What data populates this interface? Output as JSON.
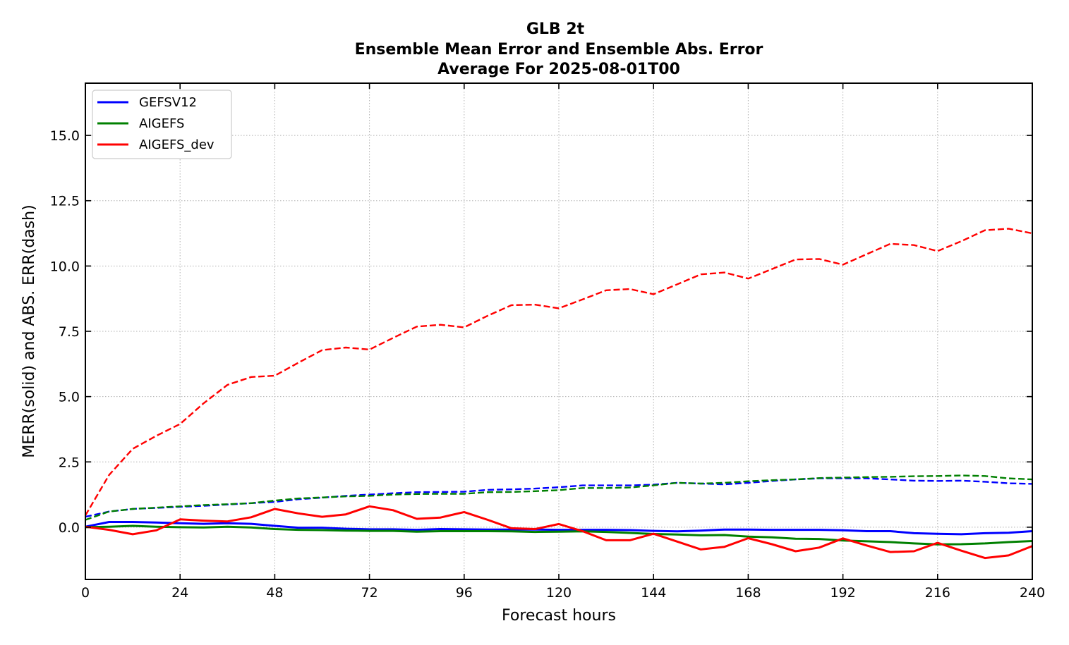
{
  "chart_data": {
    "type": "line",
    "title": [
      "GLB 2t",
      "Ensemble Mean Error and Ensemble Abs. Error",
      "Average For 2025-08-01T00"
    ],
    "xlabel": "Forecast hours",
    "ylabel": "MERR(solid) and ABS. ERR(dash)",
    "xlim": [
      0,
      240
    ],
    "ylim": [
      -2.0,
      17.0
    ],
    "xticks": [
      0,
      24,
      48,
      72,
      96,
      120,
      144,
      168,
      192,
      216,
      240
    ],
    "yticks": [
      0.0,
      2.5,
      5.0,
      7.5,
      10.0,
      12.5,
      15.0
    ],
    "ytick_labels": [
      "0.0",
      "2.5",
      "5.0",
      "7.5",
      "10.0",
      "12.5",
      "15.0"
    ],
    "grid": true,
    "legend_position": "upper-left",
    "x": [
      0,
      6,
      12,
      18,
      24,
      30,
      36,
      42,
      48,
      54,
      60,
      66,
      72,
      78,
      84,
      90,
      96,
      102,
      108,
      114,
      120,
      126,
      132,
      138,
      144,
      150,
      156,
      162,
      168,
      174,
      180,
      186,
      192,
      198,
      204,
      210,
      216,
      222,
      228,
      234,
      240
    ],
    "series": [
      {
        "name": "GEFSV12",
        "color": "#0000ff",
        "merr": [
          0.02,
          0.2,
          0.2,
          0.18,
          0.15,
          0.13,
          0.15,
          0.13,
          0.05,
          -0.02,
          -0.02,
          -0.06,
          -0.08,
          -0.08,
          -0.1,
          -0.07,
          -0.08,
          -0.09,
          -0.09,
          -0.09,
          -0.1,
          -0.1,
          -0.1,
          -0.11,
          -0.14,
          -0.16,
          -0.13,
          -0.09,
          -0.09,
          -0.1,
          -0.1,
          -0.1,
          -0.12,
          -0.15,
          -0.15,
          -0.23,
          -0.25,
          -0.27,
          -0.23,
          -0.21,
          -0.15
        ],
        "abserr": [
          0.4,
          0.6,
          0.7,
          0.74,
          0.78,
          0.82,
          0.87,
          0.92,
          0.97,
          1.07,
          1.13,
          1.2,
          1.25,
          1.3,
          1.34,
          1.35,
          1.36,
          1.43,
          1.45,
          1.48,
          1.53,
          1.6,
          1.6,
          1.6,
          1.63,
          1.7,
          1.67,
          1.64,
          1.7,
          1.77,
          1.83,
          1.87,
          1.87,
          1.87,
          1.83,
          1.78,
          1.77,
          1.78,
          1.74,
          1.68,
          1.66
        ]
      },
      {
        "name": "AIGEFS",
        "color": "#008000",
        "merr": [
          0.0,
          0.02,
          0.05,
          0.02,
          0.0,
          -0.01,
          0.02,
          -0.01,
          -0.07,
          -0.1,
          -0.11,
          -0.13,
          -0.14,
          -0.14,
          -0.17,
          -0.15,
          -0.15,
          -0.15,
          -0.16,
          -0.18,
          -0.17,
          -0.16,
          -0.18,
          -0.22,
          -0.26,
          -0.28,
          -0.31,
          -0.3,
          -0.36,
          -0.39,
          -0.44,
          -0.45,
          -0.51,
          -0.54,
          -0.57,
          -0.62,
          -0.66,
          -0.65,
          -0.62,
          -0.57,
          -0.53
        ],
        "abserr": [
          0.28,
          0.6,
          0.7,
          0.75,
          0.8,
          0.85,
          0.88,
          0.92,
          1.02,
          1.1,
          1.14,
          1.18,
          1.2,
          1.25,
          1.27,
          1.28,
          1.28,
          1.34,
          1.35,
          1.38,
          1.42,
          1.5,
          1.5,
          1.52,
          1.6,
          1.7,
          1.67,
          1.7,
          1.76,
          1.8,
          1.83,
          1.88,
          1.9,
          1.92,
          1.93,
          1.95,
          1.96,
          1.98,
          1.96,
          1.87,
          1.83
        ]
      },
      {
        "name": "AIGEFS_dev",
        "color": "#ff0000",
        "merr": [
          0.02,
          -0.1,
          -0.27,
          -0.12,
          0.3,
          0.25,
          0.22,
          0.38,
          0.7,
          0.53,
          0.4,
          0.49,
          0.8,
          0.65,
          0.32,
          0.37,
          0.58,
          0.28,
          -0.04,
          -0.07,
          0.12,
          -0.15,
          -0.5,
          -0.5,
          -0.25,
          -0.55,
          -0.85,
          -0.75,
          -0.42,
          -0.65,
          -0.92,
          -0.78,
          -0.43,
          -0.7,
          -0.95,
          -0.92,
          -0.6,
          -0.9,
          -1.18,
          -1.08,
          -0.72
        ],
        "abserr": [
          0.45,
          2.0,
          3.0,
          3.5,
          3.95,
          4.75,
          5.45,
          5.75,
          5.8,
          6.3,
          6.78,
          6.88,
          6.8,
          7.25,
          7.68,
          7.75,
          7.65,
          8.1,
          8.5,
          8.52,
          8.38,
          8.72,
          9.07,
          9.12,
          8.92,
          9.3,
          9.68,
          9.75,
          9.52,
          9.88,
          10.25,
          10.27,
          10.05,
          10.45,
          10.85,
          10.8,
          10.57,
          10.95,
          11.37,
          11.43,
          11.25
        ]
      }
    ]
  }
}
